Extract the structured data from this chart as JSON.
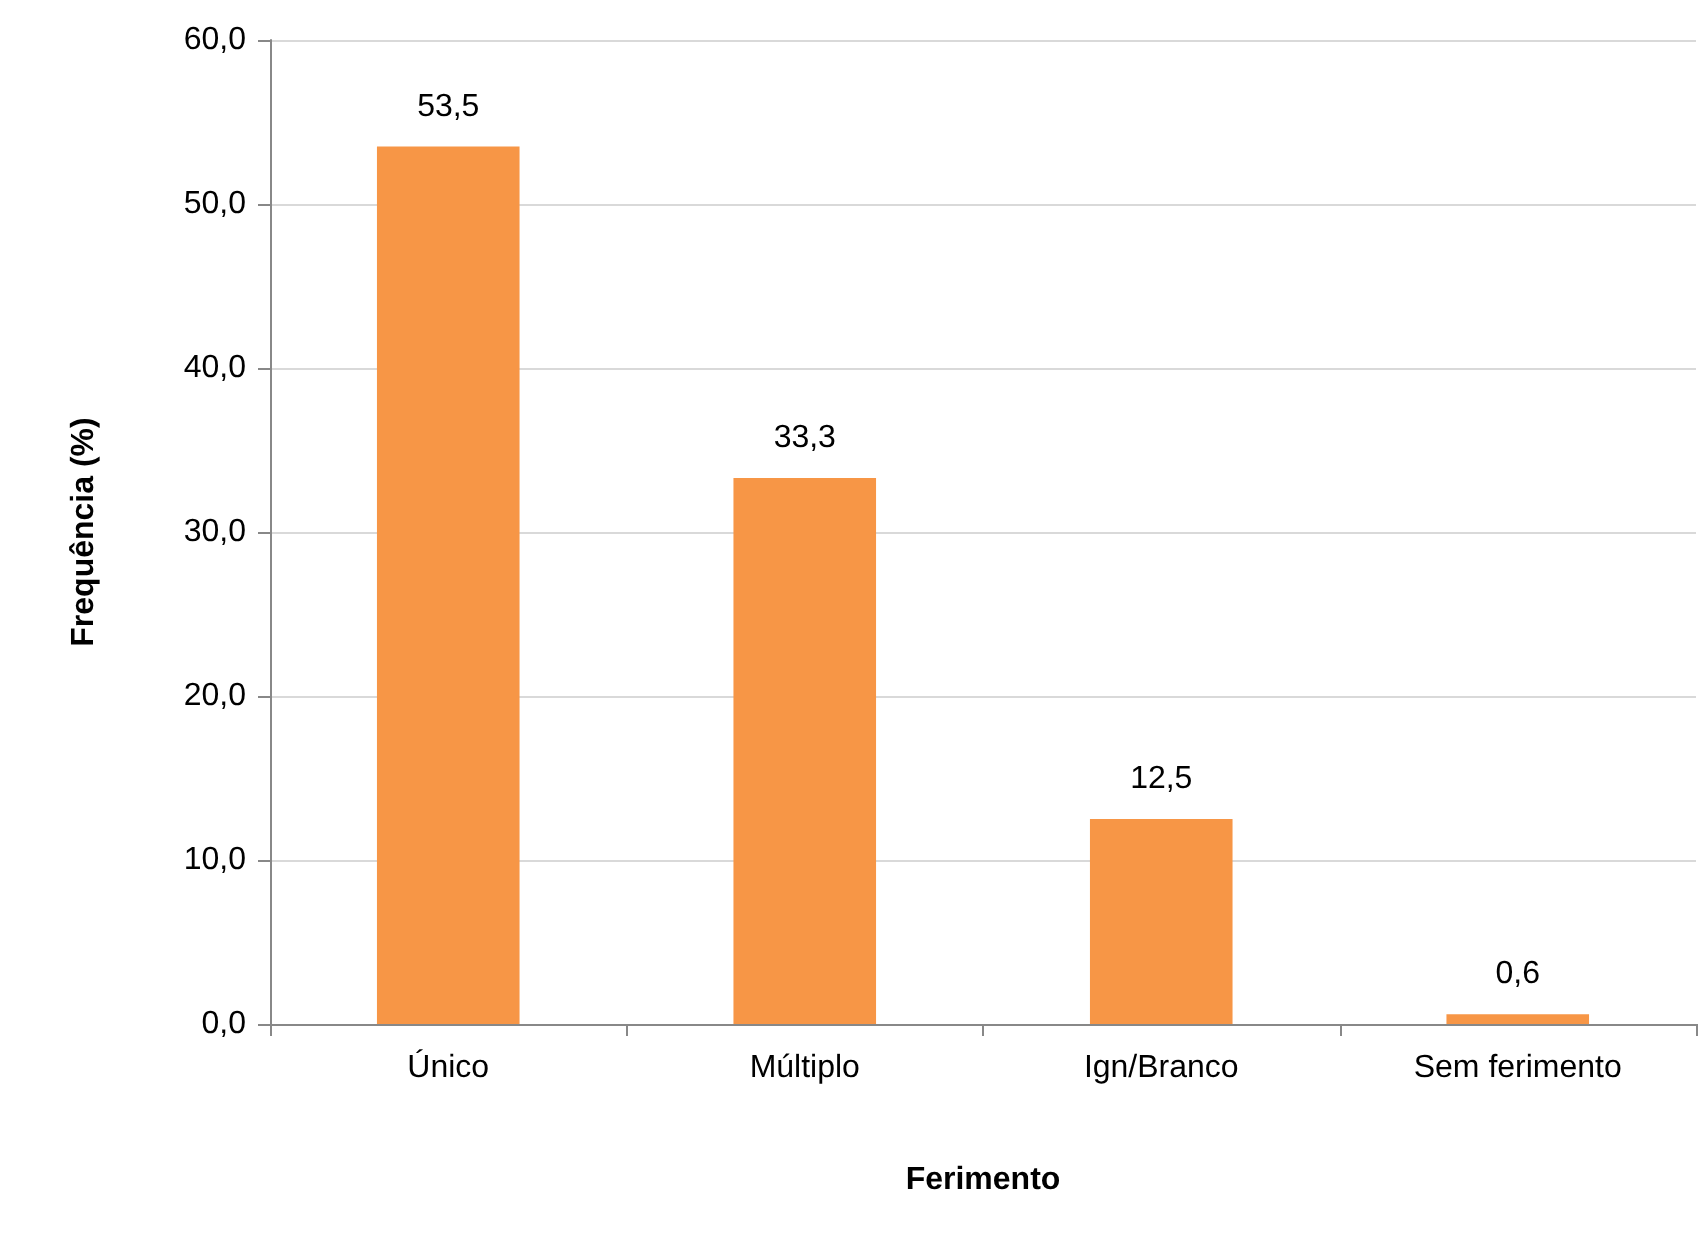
{
  "chart_data": {
    "type": "bar",
    "xlabel": "Ferimento",
    "ylabel": "Frequência (%)",
    "categories": [
      "Único",
      "Múltiplo",
      "Ign/Branco",
      "Sem ferimento"
    ],
    "values": [
      53.5,
      33.3,
      12.5,
      0.6
    ],
    "value_labels": [
      "53,5",
      "33,3",
      "12,5",
      "0,6"
    ],
    "color": "#f79646",
    "ylim": [
      0,
      60
    ],
    "yticks": [
      {
        "value": 0,
        "label": "0,0"
      },
      {
        "value": 10,
        "label": "10,0"
      },
      {
        "value": 20,
        "label": "20,0"
      },
      {
        "value": 30,
        "label": "30,0"
      },
      {
        "value": 40,
        "label": "40,0"
      },
      {
        "value": 50,
        "label": "50,0"
      },
      {
        "value": 60,
        "label": "60,0"
      }
    ],
    "grid": "y"
  }
}
